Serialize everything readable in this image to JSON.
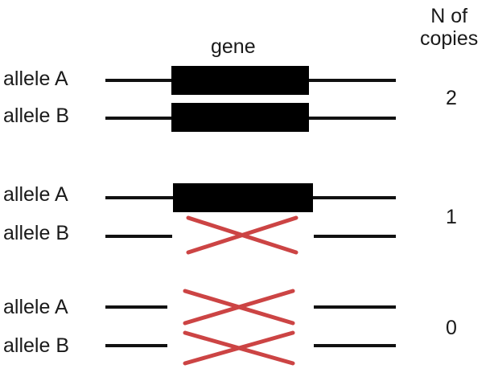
{
  "header": {
    "gene_label": "gene",
    "copies_line1": "N of",
    "copies_line2": "copies"
  },
  "groups": [
    {
      "allele_a": "allele A",
      "allele_b": "allele B",
      "copies": "2",
      "allele_a_state": "present",
      "allele_b_state": "present"
    },
    {
      "allele_a": "allele A",
      "allele_b": "allele B",
      "copies": "1",
      "allele_a_state": "present",
      "allele_b_state": "deleted"
    },
    {
      "allele_a": "allele A",
      "allele_b": "allele B",
      "copies": "0",
      "allele_a_state": "deleted",
      "allele_b_state": "deleted"
    }
  ],
  "colors": {
    "line": "#111111",
    "gene_box": "#000000",
    "deletion_cross": "#cc4444"
  }
}
